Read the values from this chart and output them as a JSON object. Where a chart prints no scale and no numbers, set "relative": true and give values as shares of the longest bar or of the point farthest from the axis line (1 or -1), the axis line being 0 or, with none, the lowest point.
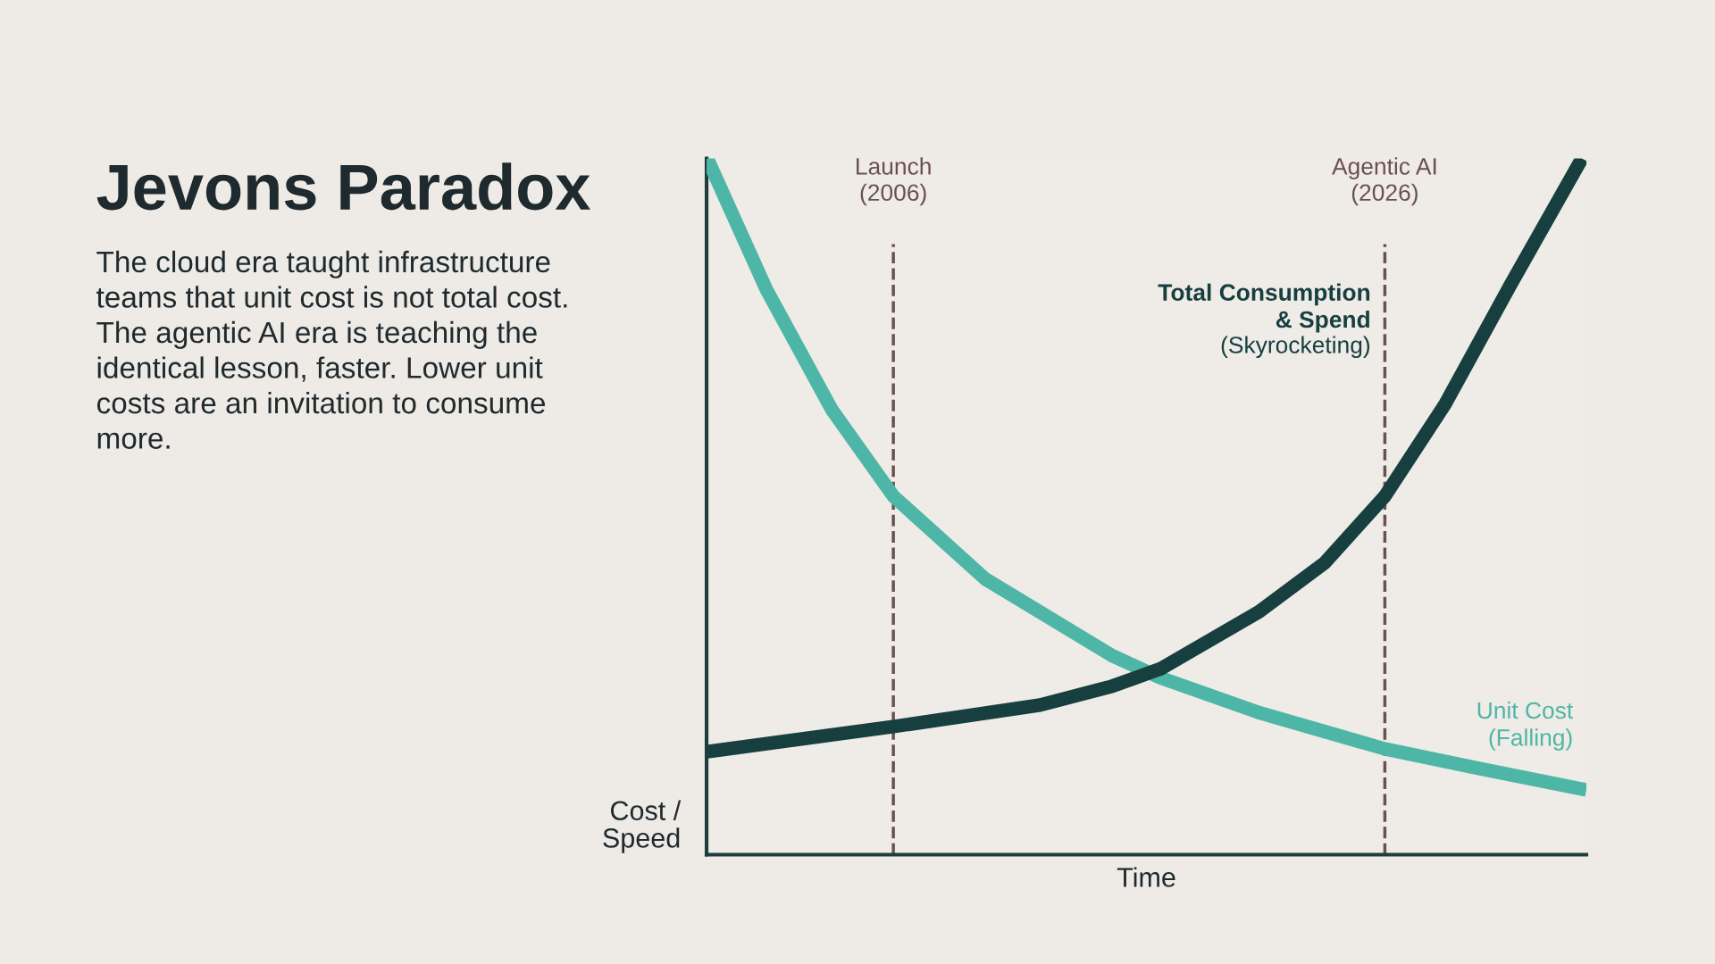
{
  "chart_data": {
    "type": "line",
    "title": "Jevons Paradox",
    "subtitle": "The cloud era taught infrastructure\nteams that unit cost is not total cost.\nThe agentic AI era is teaching the\nidentical lesson, faster. Lower unit\ncosts are an invitation to consume\nmore.",
    "xlabel": "Time",
    "ylabel": "Cost /\nSpeed",
    "relative": true,
    "tick_labels": "x",
    "xlim": [
      1998.4,
      2034.2
    ],
    "xticks": [
      {
        "value": 2006,
        "label": "Launch\n(2006)"
      },
      {
        "value": 2026,
        "label": "Agentic AI\n(2026)"
      }
    ],
    "series": [
      {
        "name": "Unit Cost (Falling)",
        "color": "#4db6a6",
        "x": [
          1998.43,
          2000.83,
          2003.5,
          2006,
          2009.74,
          2014.9,
          2016.87,
          2020.88,
          2026,
          2029.8,
          2034.2
        ],
        "values": [
          1.0,
          0.812,
          0.639,
          0.515,
          0.396,
          0.286,
          0.254,
          0.204,
          0.152,
          0.124,
          0.093
        ]
      },
      {
        "name": "Total Consumption & Spend (Skyrocketing)",
        "color": "#173f40",
        "x": [
          1998.43,
          2006,
          2011.97,
          2014.9,
          2016.87,
          2020.88,
          2023.55,
          2026,
          2028.45,
          2031.12,
          2034.02
        ],
        "values": [
          0.148,
          0.184,
          0.215,
          0.242,
          0.267,
          0.349,
          0.419,
          0.515,
          0.647,
          0.819,
          1.0
        ]
      }
    ],
    "ref_lines": [
      {
        "axis": "x",
        "value": 2006,
        "color": "#6b5050",
        "line_style": "dashed"
      },
      {
        "axis": "x",
        "value": 2026,
        "color": "#6b5050",
        "line_style": "dashed"
      }
    ],
    "line_style": "solid",
    "marker": "none",
    "legend": false
  }
}
